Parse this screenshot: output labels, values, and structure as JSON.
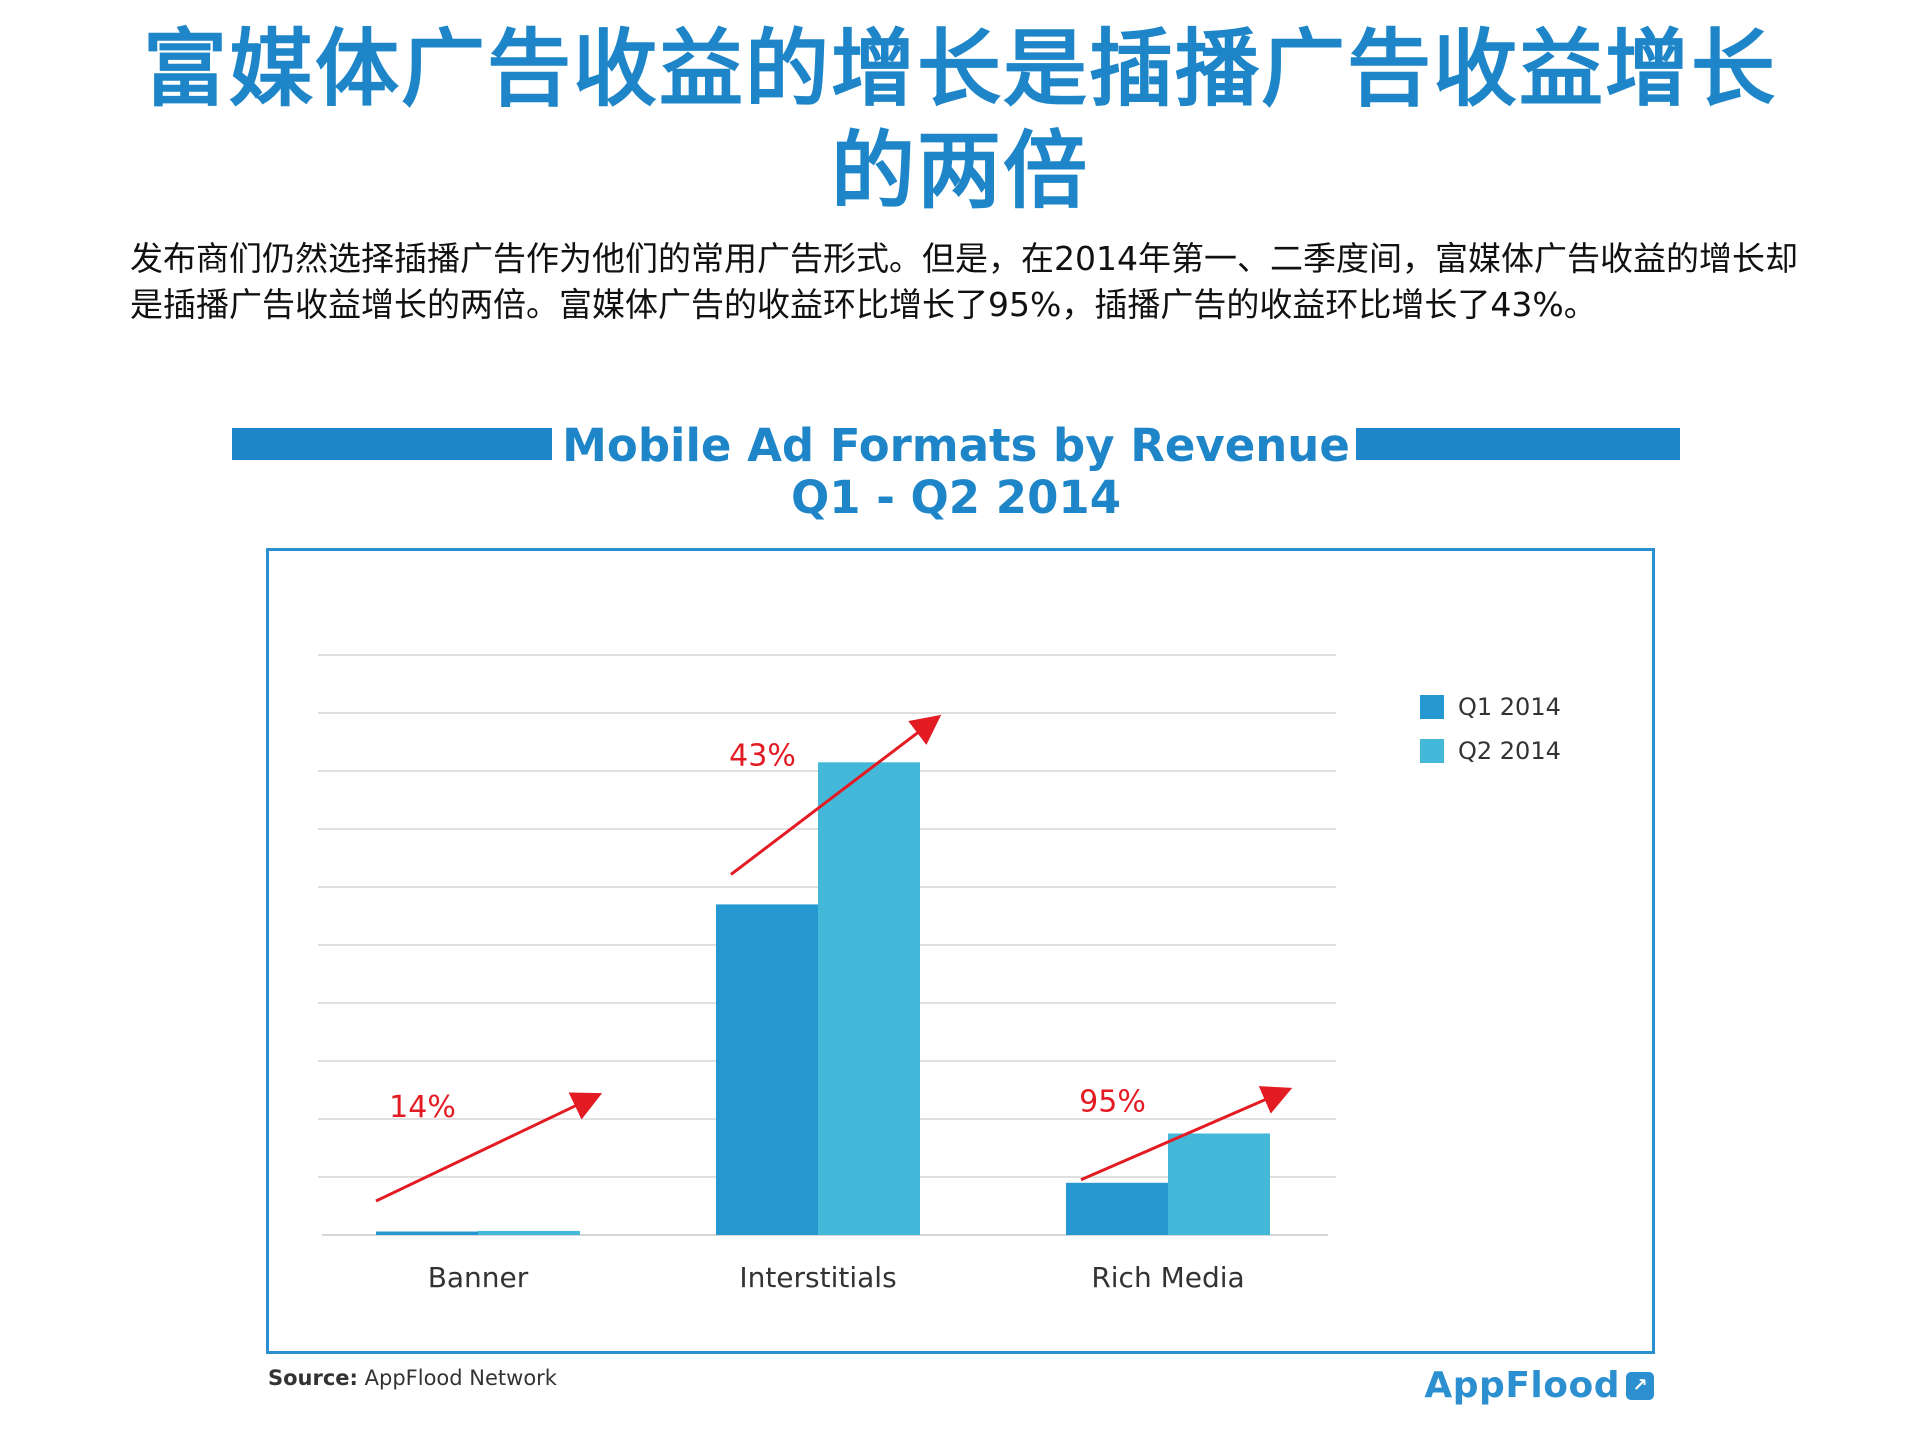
{
  "page": {
    "headline": "富媒体广告收益的增长是插播广告收益增长的两倍",
    "intro": "发布商们仍然选择插播广告作为他们的常用广告形式。但是，在2014年第一、二季度间，富媒体广告收益的增长却是插播广告收益增长的两倍。富媒体广告的收益环比增长了95%，插播广告的收益环比增长了43%。"
  },
  "chart_data": {
    "type": "bar",
    "title": "Mobile Ad Formats by Revenue",
    "subtitle": "Q1 - Q2 2014",
    "categories": [
      "Banner",
      "Interstitials",
      "Rich Media"
    ],
    "series": [
      {
        "name": "Q1 2014",
        "color": "#2598d2",
        "values": [
          0.06,
          5.7,
          0.9
        ]
      },
      {
        "name": "Q2 2014",
        "color": "#43b8d8",
        "values": [
          0.07,
          8.15,
          1.75
        ]
      }
    ],
    "ylim": [
      0,
      10
    ],
    "grid": true,
    "y_ticks_labeled": false,
    "legend_position": "top-right",
    "annotations": [
      {
        "category": "Banner",
        "text": "14%",
        "color": "#e31b23"
      },
      {
        "category": "Interstitials",
        "text": "43%",
        "color": "#e31b23"
      },
      {
        "category": "Rich Media",
        "text": "95%",
        "color": "#e31b23"
      }
    ]
  },
  "footer": {
    "source_label": "Source:",
    "source_text": "AppFlood Network",
    "brand": "AppFlood",
    "brand_mark": "↗"
  }
}
